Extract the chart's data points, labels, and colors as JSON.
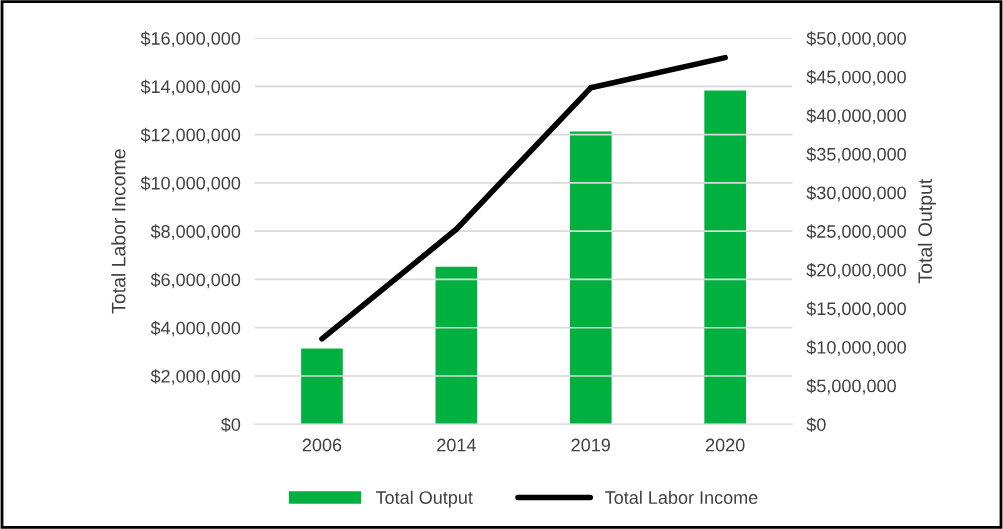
{
  "chart_data": {
    "type": "bar",
    "categories": [
      "2006",
      "2014",
      "2019",
      "2020"
    ],
    "series": [
      {
        "name": "Total Output",
        "axis": "y2",
        "color": "#00b140",
        "values": [
          9800000,
          20400000,
          37900000,
          43200000
        ]
      },
      {
        "name": "Total Labor Income",
        "type": "line",
        "axis": "y",
        "color": "#000000",
        "values": [
          3540000,
          8080000,
          13940000,
          15190000
        ]
      }
    ],
    "ylabel": "Total Labor Income",
    "y2label": "Total Output",
    "ylim": [
      0,
      16000000
    ],
    "yticks": [
      {
        "value": 0,
        "label": "$0"
      },
      {
        "value": 2000000,
        "label": "$2,000,000"
      },
      {
        "value": 4000000,
        "label": "$4,000,000"
      },
      {
        "value": 6000000,
        "label": "$6,000,000"
      },
      {
        "value": 8000000,
        "label": "$8,000,000"
      },
      {
        "value": 10000000,
        "label": "$10,000,000"
      },
      {
        "value": 12000000,
        "label": "$12,000,000"
      },
      {
        "value": 14000000,
        "label": "$14,000,000"
      },
      {
        "value": 16000000,
        "label": "$16,000,000"
      }
    ],
    "y2lim": [
      0,
      50000000
    ],
    "y2ticks": [
      {
        "value": 0,
        "label": "$0"
      },
      {
        "value": 5000000,
        "label": "$5,000,000"
      },
      {
        "value": 10000000,
        "label": "$10,000,000"
      },
      {
        "value": 15000000,
        "label": "$15,000,000"
      },
      {
        "value": 20000000,
        "label": "$20,000,000"
      },
      {
        "value": 25000000,
        "label": "$25,000,000"
      },
      {
        "value": 30000000,
        "label": "$30,000,000"
      },
      {
        "value": 35000000,
        "label": "$35,000,000"
      },
      {
        "value": 40000000,
        "label": "$40,000,000"
      },
      {
        "value": 45000000,
        "label": "$45,000,000"
      },
      {
        "value": 50000000,
        "label": "$50,000,000"
      }
    ],
    "grid": "y",
    "legend": "bottom",
    "marker": "none",
    "line_style": "solid"
  }
}
